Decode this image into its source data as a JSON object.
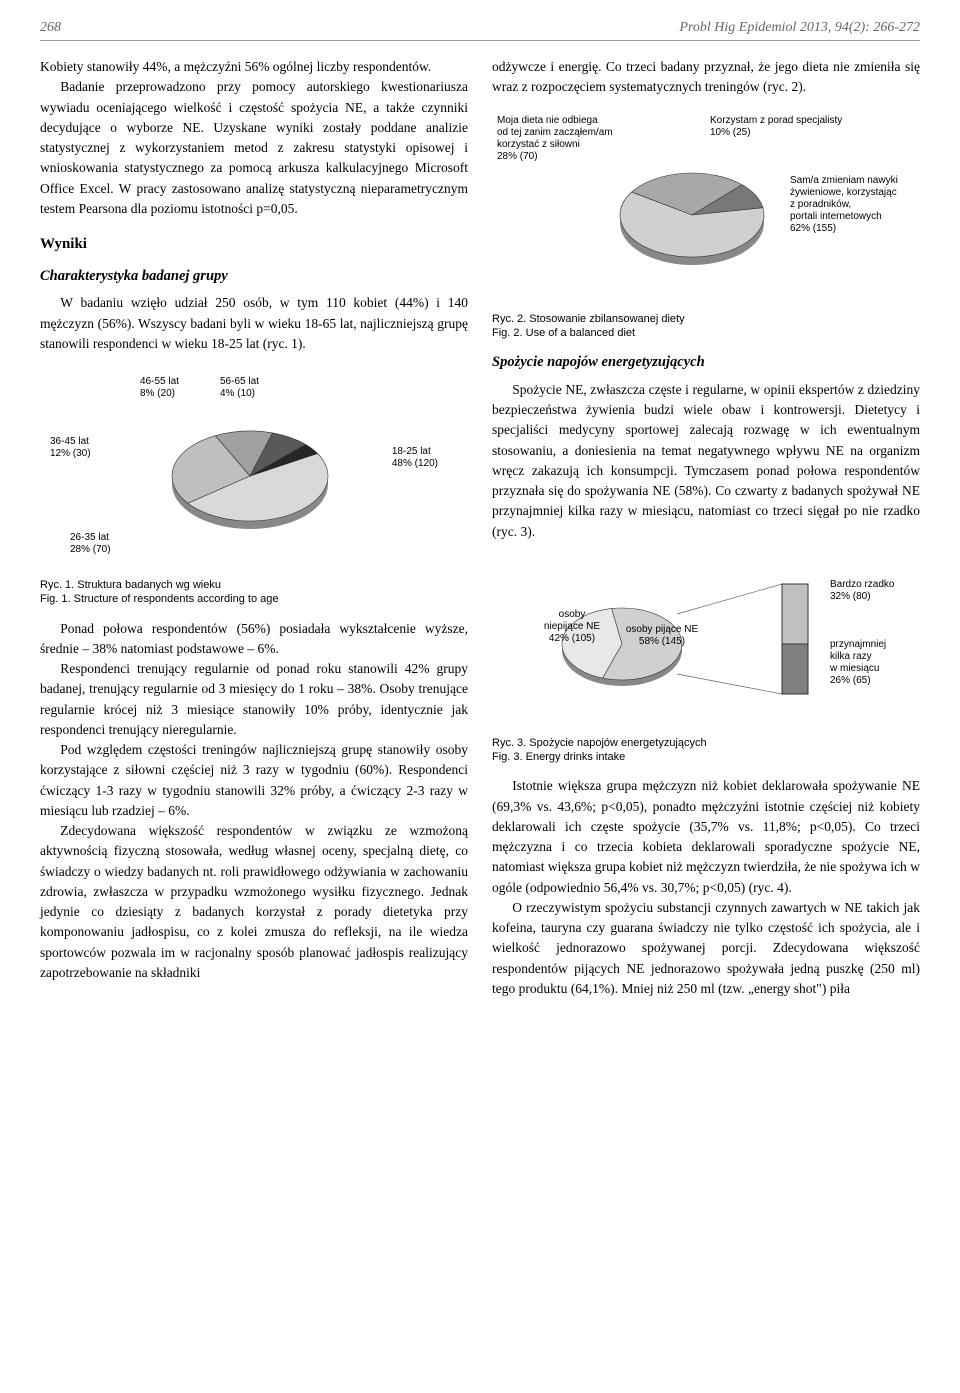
{
  "header": {
    "page_number": "268",
    "journal_ref": "Probl Hig Epidemiol 2013, 94(2): 266-272"
  },
  "left_column": {
    "p1": "Kobiety stanowiły 44%, a mężczyźni 56% ogólnej liczby respondentów.",
    "p2": "Badanie przeprowadzono przy pomocy autorskiego kwestionariusza wywiadu oceniającego wielkość i częstość spożycia NE, a także czynniki decydujące o wyborze NE. Uzyskane wyniki zostały poddane analizie statystycznej z wykorzystaniem metod z zakresu statystyki opisowej i wnioskowania statystycznego za pomocą arkusza kalkulacyjnego Microsoft Office Excel. W pracy zastosowano analizę statystyczną nieparametrycznym testem Pearsona dla poziomu istotności p=0,05.",
    "wyniki_heading": "Wyniki",
    "char_heading": "Charakterystyka badanej grupy",
    "p3": "W badaniu wzięło udział 250 osób, w tym 110 kobiet (44%) i 140 mężczyzn (56%). Wszyscy badani byli w wieku 18-65 lat, najliczniejszą grupę stanowili respondenci w wieku 18-25 lat (ryc. 1).",
    "fig1_caption1": "Ryc. 1. Struktura badanych wg wieku",
    "fig1_caption2": "Fig. 1. Structure of respondents according to age",
    "p4": "Ponad połowa respondentów (56%) posiadała wykształcenie wyższe, średnie – 38% natomiast podstawowe – 6%.",
    "p5": "Respondenci trenujący regularnie od ponad roku stanowili 42% grupy badanej, trenujący regularnie od 3 miesięcy do 1 roku – 38%. Osoby trenujące regularnie krócej niż 3 miesiące stanowiły 10% próby, identycznie jak respondenci trenujący nieregularnie.",
    "p6": "Pod względem częstości treningów najliczniejszą grupę stanowiły osoby korzystające z siłowni częściej niż 3 razy w tygodniu (60%). Respondenci ćwiczący 1-3 razy w tygodniu stanowili 32% próby, a ćwiczący 2-3 razy w miesiącu lub rzadziej – 6%.",
    "p7": "Zdecydowana większość respondentów w związku ze wzmożoną aktywnością fizyczną stosowała, według własnej oceny, specjalną dietę, co świadczy o wiedzy badanych nt. roli prawidłowego odżywiania w zachowaniu zdrowia, zwłaszcza w przypadku wzmożonego wysiłku fizycznego. Jednak jedynie co dziesiąty z badanych korzystał z porady dietetyka przy komponowaniu jadłospisu, co z kolei zmusza do refleksji, na ile wiedza sportowców pozwala im w racjonalny sposób planować jadłospis realizujący zapotrzebowanie na składniki"
  },
  "right_column": {
    "p1": "odżywcze i energię. Co trzeci badany przyznał, że jego dieta nie zmieniła się wraz z rozpoczęciem systematycznych treningów (ryc. 2).",
    "fig2_caption1": "Ryc. 2. Stosowanie zbilansowanej diety",
    "fig2_caption2": "Fig. 2. Use of a balanced diet",
    "spozycie_heading": "Spożycie napojów energetyzujących",
    "p2": "Spożycie NE, zwłaszcza częste i regularne, w opinii ekspertów z dziedziny bezpieczeństwa żywienia budzi wiele obaw i kontrowersji. Dietetycy i specjaliści medycyny sportowej zalecają rozwagę w ich ewentualnym stosowaniu, a doniesienia na temat negatywnego wpływu NE na organizm wręcz zakazują ich konsumpcji. Tymczasem ponad połowa respondentów przyznała się do spożywania NE (58%). Co czwarty z badanych spożywał NE przynajmniej kilka razy w miesiącu, natomiast co trzeci sięgał po nie rzadko (ryc. 3).",
    "fig3_caption1": "Ryc. 3. Spożycie napojów energetyzujących",
    "fig3_caption2": "Fig. 3. Energy drinks intake",
    "p3": "Istotnie większa grupa mężczyzn niż kobiet deklarowała spożywanie NE (69,3% vs. 43,6%; p<0,05), ponadto mężczyźni istotnie częściej niż kobiety deklarowali ich częste spożycie (35,7% vs. 11,8%; p<0,05). Co trzeci mężczyzna i co trzecia kobieta deklarowali sporadyczne spożycie NE, natomiast większa grupa kobiet niż mężczyzn twierdziła, że nie spożywa ich w ogóle (odpowiednio 56,4% vs. 30,7%; p<0,05) (ryc. 4).",
    "p4": "O rzeczywistym spożyciu substancji czynnych zawartych w NE takich jak kofeina, tauryna czy guarana świadczy nie tylko częstość ich spożycia, ale i wielkość jednorazowo spożywanej porcji. Zdecydowana większość respondentów pijących NE jednorazowo spożywała jedną puszkę (250 ml) tego produktu (64,1%). Mniej niż 250 ml (tzw. „energy shot\") piła"
  },
  "fig1": {
    "type": "pie",
    "slices": [
      {
        "label": "18-25 lat",
        "pct": 48,
        "n": 120,
        "color": "#d9d9d9"
      },
      {
        "label": "26-35 lat",
        "pct": 28,
        "n": 70,
        "color": "#bfbfbf"
      },
      {
        "label": "36-45 lat",
        "pct": 12,
        "n": 30,
        "color": "#a0a0a0"
      },
      {
        "label": "46-55 lat",
        "pct": 8,
        "n": 20,
        "color": "#595959"
      },
      {
        "label": "56-65 lat",
        "pct": 4,
        "n": 10,
        "color": "#262626"
      }
    ],
    "labels": {
      "l1825": "18-25 lat\n48% (120)",
      "l2635": "26-35 lat\n28% (70)",
      "l3645": "36-45 lat\n12% (30)",
      "l4655": "46-55 lat\n8% (20)",
      "l5665": "56-65 lat\n4% (10)"
    },
    "background": "#ffffff",
    "stroke": "#333333"
  },
  "fig2": {
    "type": "pie",
    "slices": [
      {
        "label": "Sam/a zmieniam",
        "pct": 62,
        "n": 155,
        "color": "#d0d0d0"
      },
      {
        "label": "Moja dieta nie odbiega",
        "pct": 28,
        "n": 70,
        "color": "#a8a8a8"
      },
      {
        "label": "Korzystam z porad",
        "pct": 10,
        "n": 25,
        "color": "#787878"
      }
    ],
    "labels": {
      "l_left": "Moja dieta nie odbiega\nod tej zanim zacząłem/am\nkorzystać z siłowni\n28% (70)",
      "l_top": "Korzystam z porad specjalisty\n10% (25)",
      "l_right": "Sam/a zmieniam nawyki\nżywieniowe, korzystając\nz poradników,\nportali internetowych\n62% (155)"
    },
    "background": "#ffffff",
    "stroke": "#333333"
  },
  "fig3": {
    "type": "pie-with-breakout",
    "main_slices": [
      {
        "label": "osoby pijące NE",
        "pct": 58,
        "n": 145,
        "color": "#d0d0d0"
      },
      {
        "label": "osoby niepijące NE",
        "pct": 42,
        "n": 105,
        "color": "#e8e8e8"
      }
    ],
    "breakout_bars": [
      {
        "label": "Bardzo rzadko",
        "pct": 32,
        "n": 80,
        "color": "#c0c0c0"
      },
      {
        "label": "przynajmniej kilka razy w miesiącu",
        "pct": 26,
        "n": 65,
        "color": "#808080"
      }
    ],
    "labels": {
      "l_niepijace": "osoby\nniepijące NE\n42% (105)",
      "l_pijace": "osoby pijące NE\n58% (145)",
      "l_rzadko": "Bardzo rzadko\n32% (80)",
      "l_kilka": "przynajmniej\nkilka razy\nw miesiącu\n26% (65)"
    },
    "background": "#ffffff",
    "stroke": "#333333"
  }
}
